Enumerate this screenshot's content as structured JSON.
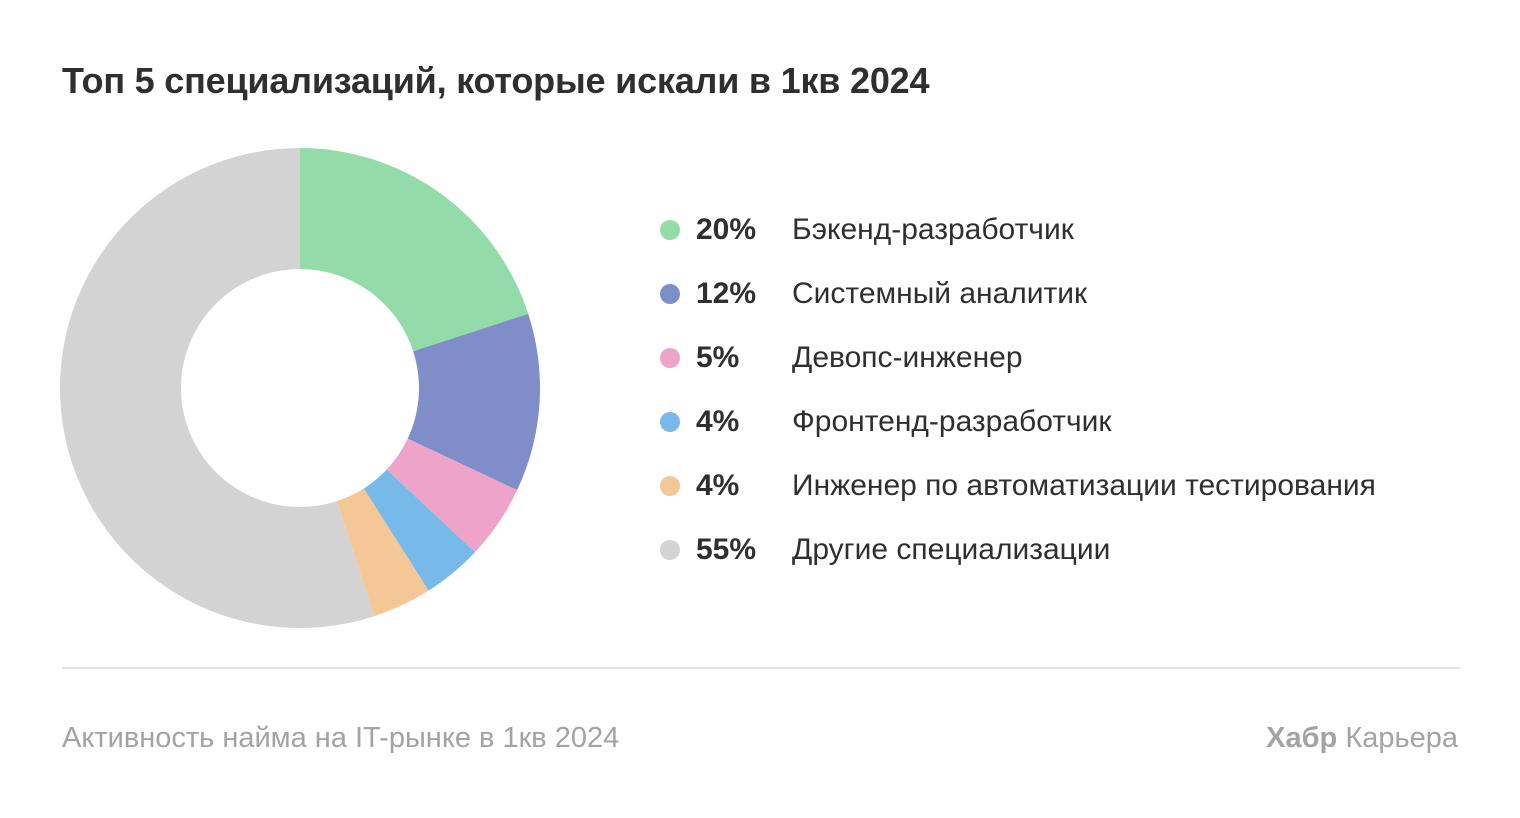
{
  "chart_data": {
    "type": "pie",
    "title": "Топ 5 специализаций, которые искали в 1кв 2024",
    "slices": [
      {
        "value": 20,
        "value_label": "20%",
        "label": "Бэкенд-разработчик",
        "color": "#93dca9"
      },
      {
        "value": 12,
        "value_label": "12%",
        "label": "Системный аналитик",
        "color": "#7f8dc8"
      },
      {
        "value": 5,
        "value_label": "5%",
        "label": "Девопс-инженер",
        "color": "#eea3c8"
      },
      {
        "value": 4,
        "value_label": "4%",
        "label": "Фронтенд-разработчик",
        "color": "#77b9e9"
      },
      {
        "value": 4,
        "value_label": "4%",
        "label": "Инженер по автоматизации тестирования",
        "color": "#f5c796"
      },
      {
        "value": 55,
        "value_label": "55%",
        "label": "Другие специализации",
        "color": "#d3d3d3"
      }
    ],
    "donut": true,
    "legend_position": "right"
  },
  "footer": {
    "caption": "Активность найма на IT-рынке в 1кв 2024",
    "brand_bold": "Хабр",
    "brand_regular": "Карьера"
  }
}
